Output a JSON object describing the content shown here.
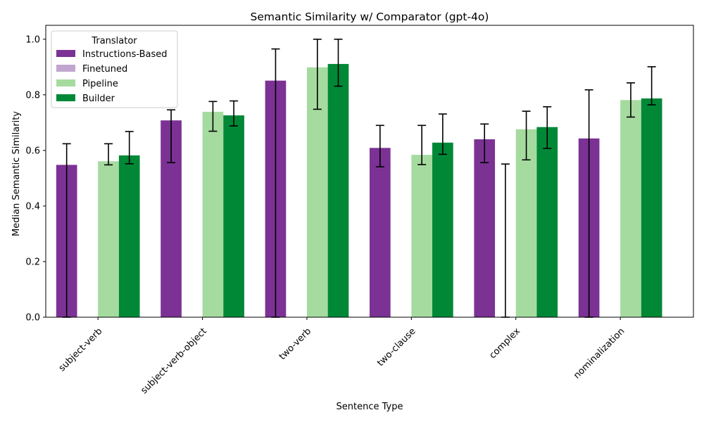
{
  "chart_data": {
    "type": "bar",
    "title": "Semantic Similarity w/ Comparator (gpt-4o)",
    "xlabel": "Sentence Type",
    "ylabel": "Median Semantic Similarity",
    "ylim": [
      0,
      1.05
    ],
    "yticks": [
      0.0,
      0.2,
      0.4,
      0.6,
      0.8,
      1.0
    ],
    "ytick_labels": [
      "0.0",
      "0.2",
      "0.4",
      "0.6",
      "0.8",
      "1.0"
    ],
    "categories": [
      "subject-verb",
      "subject-verb-object",
      "two-verb",
      "two-clause",
      "complex",
      "nominalization"
    ],
    "legend": {
      "title": "Translator",
      "placement": "top-left"
    },
    "grid": false,
    "series": [
      {
        "name": "Instructions-Based",
        "color": "#7b3294",
        "values": [
          0.548,
          0.708,
          0.851,
          0.609,
          0.64,
          0.643
        ],
        "err_low": [
          0.0,
          0.556,
          0.0,
          0.541,
          0.556,
          0.0
        ],
        "err_high": [
          0.624,
          0.746,
          0.965,
          0.69,
          0.695,
          0.818
        ]
      },
      {
        "name": "Finetuned",
        "color": "#c2a5cf",
        "values": [
          0.0,
          0.0,
          0.0,
          0.0,
          0.0,
          0.0
        ],
        "err_low": [
          null,
          null,
          null,
          null,
          0.0,
          null
        ],
        "err_high": [
          null,
          null,
          null,
          null,
          0.551,
          null
        ]
      },
      {
        "name": "Pipeline",
        "color": "#a6dba0",
        "values": [
          0.561,
          0.739,
          0.899,
          0.584,
          0.676,
          0.781
        ],
        "err_low": [
          0.548,
          0.669,
          0.748,
          0.549,
          0.566,
          0.72
        ],
        "err_high": [
          0.624,
          0.776,
          1.0,
          0.69,
          0.741,
          0.843
        ]
      },
      {
        "name": "Builder",
        "color": "#008837",
        "values": [
          0.582,
          0.726,
          0.911,
          0.628,
          0.684,
          0.787
        ],
        "err_low": [
          0.552,
          0.688,
          0.831,
          0.586,
          0.607,
          0.764
        ],
        "err_high": [
          0.668,
          0.778,
          1.0,
          0.731,
          0.757,
          0.901
        ]
      }
    ]
  }
}
